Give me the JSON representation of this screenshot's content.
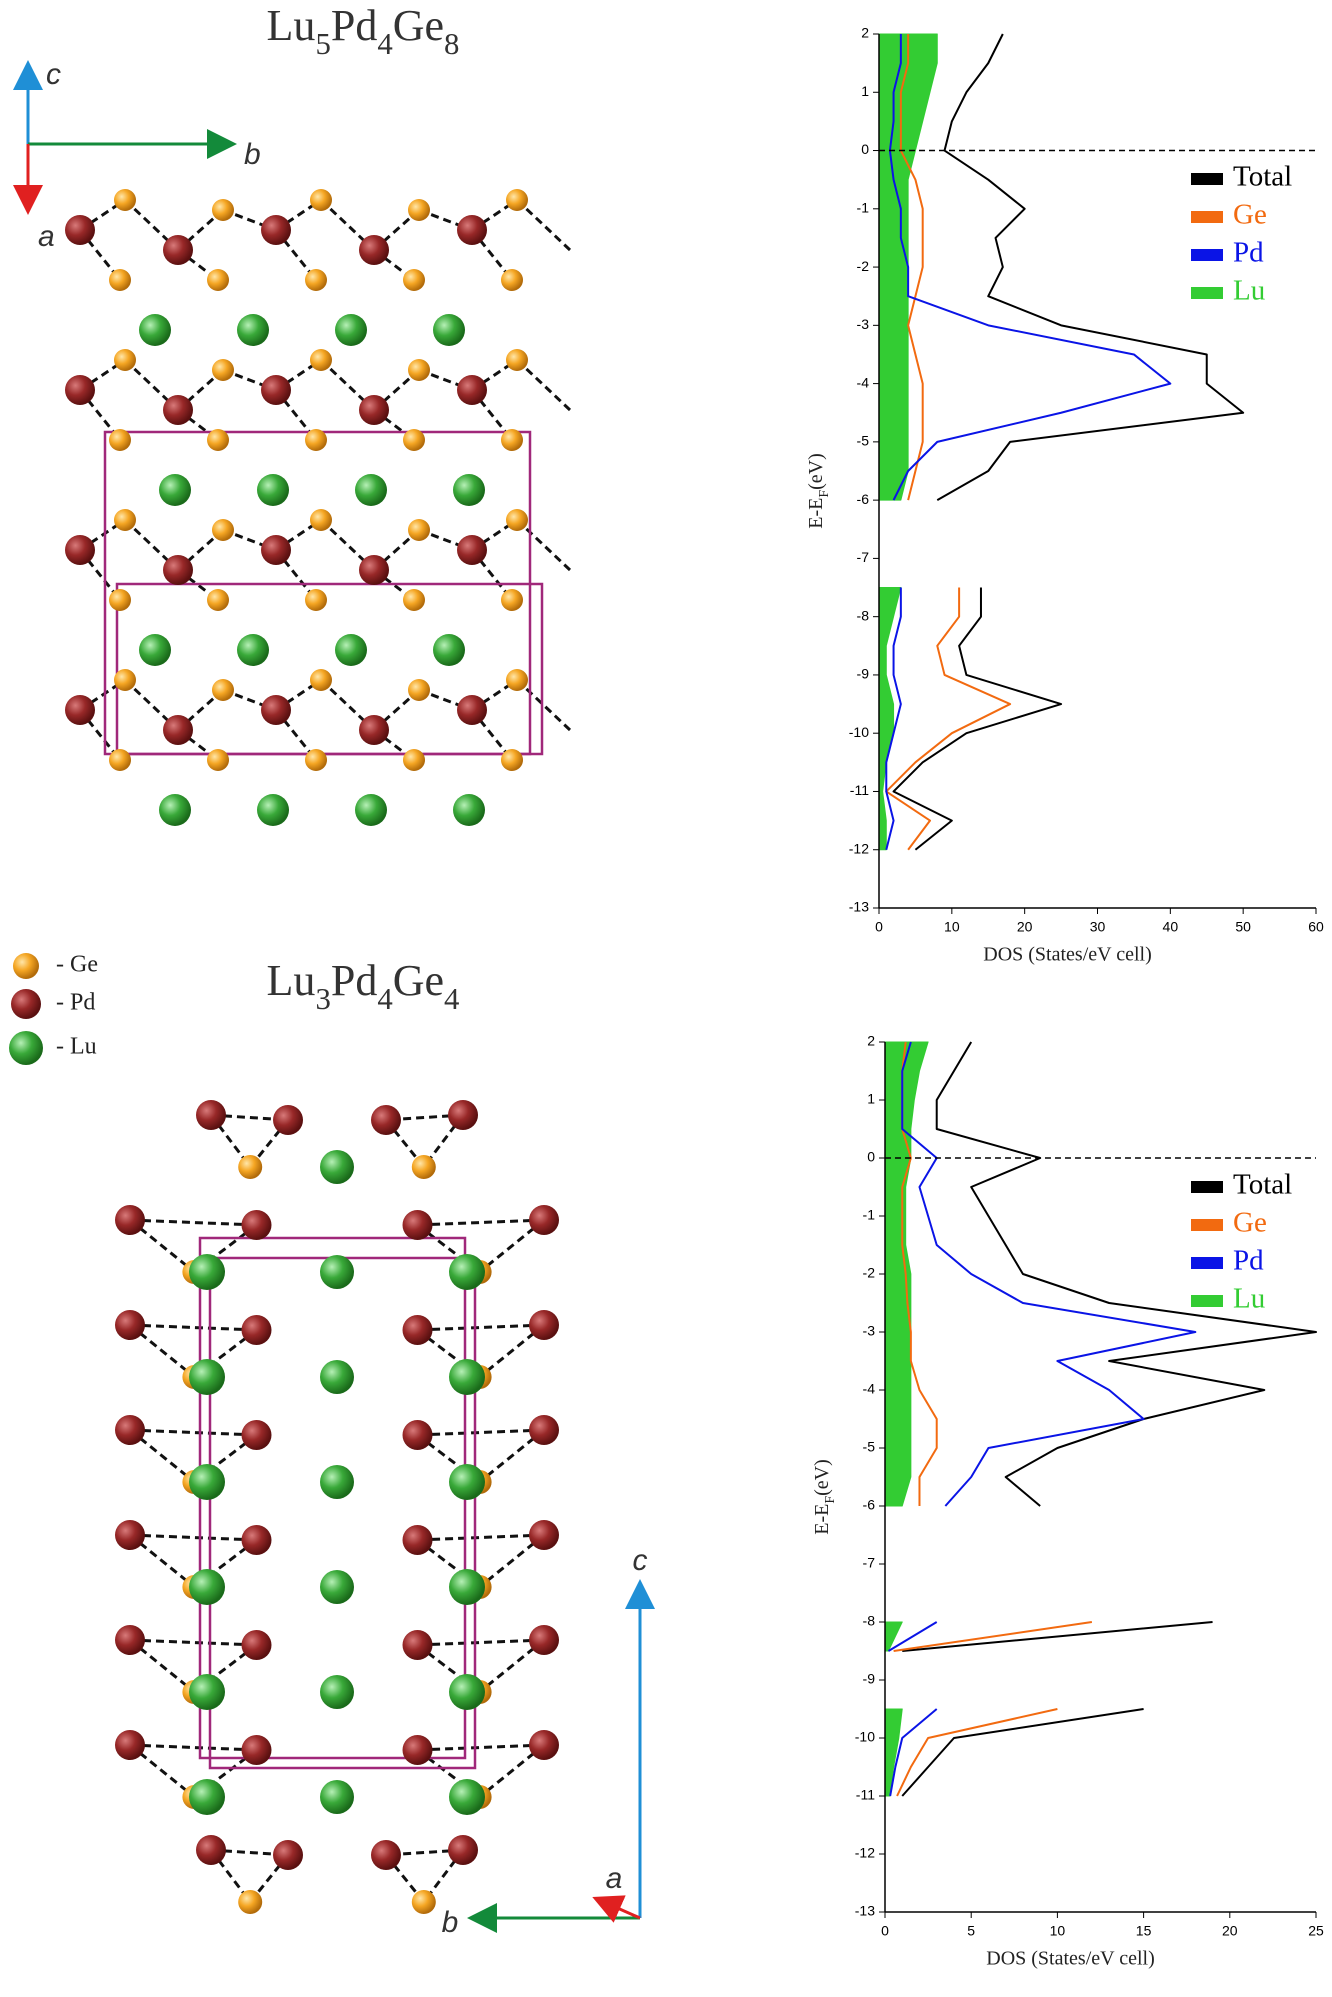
{
  "structures": [
    {
      "title_parts": [
        "Lu",
        "5",
        "Pd",
        "4",
        "Ge",
        "8"
      ],
      "axes": [
        "c",
        "b",
        "a"
      ]
    },
    {
      "title_parts": [
        "Lu",
        "3",
        "Pd",
        "4",
        "Ge",
        "4"
      ],
      "axes": [
        "c",
        "b",
        "a"
      ]
    }
  ],
  "atom_legend": [
    "- Ge",
    "- Pd",
    "- Lu"
  ],
  "chart_data": [
    {
      "type": "line",
      "x_label": [
        "E-E",
        "F",
        "(eV)"
      ],
      "y_label": "DOS (States/eV cell)",
      "x": [
        -12,
        -11.5,
        -11,
        -10.5,
        -10,
        -9.5,
        -9,
        -8.5,
        -8,
        -7.5,
        -7,
        -6.5,
        -6,
        -5.5,
        -5,
        -4.5,
        -4,
        -3.5,
        -3,
        -2.5,
        -2,
        -1.5,
        -1,
        -0.5,
        0,
        0.5,
        1,
        1.5,
        2
      ],
      "xlim": [
        -13,
        2
      ],
      "xticks": [
        -13,
        -12,
        -11,
        -10,
        -9,
        -8,
        -7,
        -6,
        -5,
        -4,
        -3,
        -2,
        -1,
        0,
        1,
        2
      ],
      "ylim": [
        0,
        60
      ],
      "yticks": [
        0,
        10,
        20,
        30,
        40,
        50,
        60
      ],
      "fermi_level": 0,
      "legend": "upper right",
      "series": [
        {
          "name": "Total",
          "color": "#000000",
          "values": [
            5,
            10,
            2,
            6,
            12,
            25,
            12,
            11,
            14,
            14,
            null,
            null,
            8,
            15,
            18,
            50,
            45,
            45,
            25,
            15,
            17,
            16,
            20,
            15,
            9,
            10,
            12,
            15,
            17
          ]
        },
        {
          "name": "Ge",
          "color": "#f26a10",
          "values": [
            4,
            7,
            1,
            5,
            10,
            18,
            9,
            8,
            11,
            11,
            null,
            null,
            4,
            5,
            6,
            6,
            6,
            5,
            4,
            5,
            6,
            6,
            6,
            5,
            3,
            3,
            3,
            4,
            4
          ]
        },
        {
          "name": "Pd",
          "color": "#0a14e6",
          "values": [
            1,
            2,
            1,
            1,
            2,
            3,
            2,
            2,
            3,
            3,
            null,
            null,
            2,
            4,
            8,
            25,
            40,
            35,
            15,
            4,
            4,
            3,
            3,
            2,
            1.5,
            2,
            2,
            3,
            3
          ]
        },
        {
          "name": "Lu",
          "color": "#33cc33",
          "fill": true,
          "values": [
            1,
            1,
            0.5,
            1,
            2,
            2,
            1,
            1,
            2,
            3,
            null,
            null,
            3,
            4,
            4,
            4,
            4,
            4,
            4,
            4,
            4,
            4,
            4,
            4,
            5,
            6,
            7,
            8,
            8
          ]
        }
      ]
    },
    {
      "type": "line",
      "x_label": [
        "E-E",
        "F",
        "(eV)"
      ],
      "y_label": "DOS (States/eV cell)",
      "x": [
        -12,
        -11.5,
        -11,
        -10.5,
        -10,
        -9.5,
        -9,
        -8.5,
        -8,
        -7.5,
        -7,
        -6.5,
        -6,
        -5.5,
        -5,
        -4.5,
        -4,
        -3.5,
        -3,
        -2.5,
        -2,
        -1.5,
        -1,
        -0.5,
        0,
        0.5,
        1,
        1.5,
        2
      ],
      "xlim": [
        -13,
        2
      ],
      "xticks": [
        -13,
        -12,
        -11,
        -10,
        -9,
        -8,
        -7,
        -6,
        -5,
        -4,
        -3,
        -2,
        -1,
        0,
        1,
        2
      ],
      "ylim": [
        0,
        25
      ],
      "yticks": [
        0,
        5,
        10,
        15,
        20,
        25
      ],
      "fermi_level": 0,
      "legend": "upper right",
      "series": [
        {
          "name": "Total",
          "color": "#000000",
          "values": [
            null,
            null,
            1,
            2.5,
            4,
            15,
            null,
            1,
            19,
            null,
            null,
            null,
            9,
            7,
            10,
            15,
            22,
            13,
            25,
            13,
            8,
            7,
            6,
            5,
            9,
            3,
            3,
            4,
            5
          ]
        },
        {
          "name": "Ge",
          "color": "#f26a10",
          "values": [
            null,
            null,
            0.7,
            1.5,
            2.5,
            10,
            null,
            0.5,
            12,
            null,
            null,
            null,
            2,
            2,
            3,
            3,
            2,
            1.5,
            1.5,
            1.3,
            1.2,
            1,
            1,
            1,
            1.5,
            1,
            1,
            1,
            1.2
          ]
        },
        {
          "name": "Pd",
          "color": "#0a14e6",
          "values": [
            null,
            null,
            0.3,
            0.6,
            1,
            3,
            null,
            0.2,
            3,
            null,
            null,
            null,
            3.5,
            5,
            6,
            15,
            13,
            10,
            18,
            8,
            5,
            3,
            2.5,
            2,
            3,
            1,
            1,
            1,
            1.5
          ]
        },
        {
          "name": "Lu",
          "color": "#33cc33",
          "fill": true,
          "values": [
            null,
            null,
            0.3,
            0.5,
            0.8,
            1,
            null,
            0.2,
            1,
            null,
            null,
            null,
            1,
            1.5,
            1.5,
            1.5,
            1.5,
            1.5,
            1.5,
            1.5,
            1.5,
            1.2,
            1.2,
            1.2,
            1.5,
            1.5,
            1.7,
            2,
            2.5
          ]
        }
      ]
    }
  ]
}
